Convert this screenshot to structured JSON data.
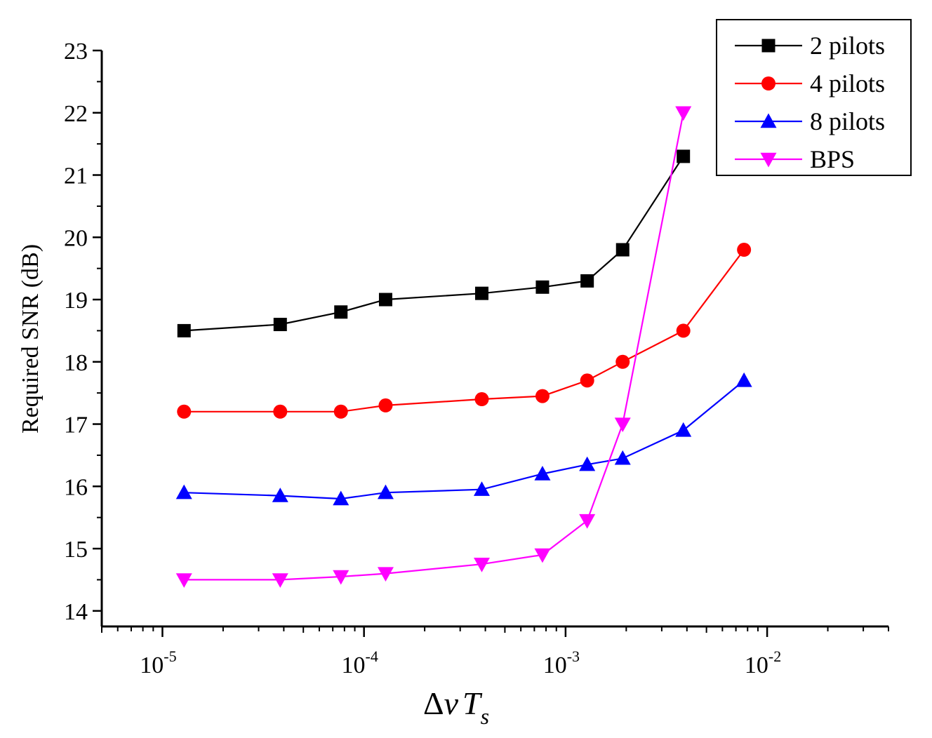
{
  "chart_data": {
    "type": "line",
    "title": "",
    "xlabel": {
      "delta": "Δ",
      "nu": "v",
      "T": "T",
      "sub": "s"
    },
    "ylabel": "Required SNR (dB)",
    "xscale": "log",
    "xlim": [
      5e-06,
      0.04
    ],
    "ylim": [
      13.75,
      23
    ],
    "yticks": [
      14,
      15,
      16,
      17,
      18,
      19,
      20,
      21,
      22,
      23
    ],
    "ytick_labels": [
      "14",
      "15",
      "16",
      "17",
      "18",
      "19",
      "20",
      "21",
      "22",
      "23"
    ],
    "xticks": [
      {
        "value": 1e-05,
        "base": "10",
        "exp": "-5"
      },
      {
        "value": 0.0001,
        "base": "10",
        "exp": "-4"
      },
      {
        "value": 0.001,
        "base": "10",
        "exp": "-3"
      },
      {
        "value": 0.01,
        "base": "10",
        "exp": "-2"
      }
    ],
    "grid": false,
    "legend_position": "top-right",
    "series": [
      {
        "name": "2 pilots",
        "color": "#000000",
        "marker": "square",
        "x": [
          1.28e-05,
          3.84e-05,
          7.68e-05,
          0.000128,
          0.000384,
          0.000768,
          0.00128,
          0.00192,
          0.00384
        ],
        "y": [
          18.5,
          18.6,
          18.8,
          19.0,
          19.1,
          19.2,
          19.3,
          19.8,
          21.3
        ]
      },
      {
        "name": "4 pilots",
        "color": "#ff0000",
        "marker": "circle",
        "x": [
          1.28e-05,
          3.84e-05,
          7.68e-05,
          0.000128,
          0.000384,
          0.000768,
          0.00128,
          0.00192,
          0.00384,
          0.00768
        ],
        "y": [
          17.2,
          17.2,
          17.2,
          17.3,
          17.4,
          17.45,
          17.7,
          18.0,
          18.5,
          19.8
        ]
      },
      {
        "name": "8 pilots",
        "color": "#0000ff",
        "marker": "triangle-up",
        "x": [
          1.28e-05,
          3.84e-05,
          7.68e-05,
          0.000128,
          0.000384,
          0.000768,
          0.00128,
          0.00192,
          0.00384,
          0.00768
        ],
        "y": [
          15.9,
          15.85,
          15.8,
          15.9,
          15.95,
          16.2,
          16.35,
          16.45,
          16.9,
          17.7
        ]
      },
      {
        "name": "BPS",
        "color": "#ff00ff",
        "marker": "triangle-down",
        "x": [
          1.28e-05,
          3.84e-05,
          7.68e-05,
          0.000128,
          0.000384,
          0.000768,
          0.00128,
          0.00192,
          0.00384
        ],
        "y": [
          14.5,
          14.5,
          14.55,
          14.6,
          14.75,
          14.9,
          15.45,
          17.0,
          22.0
        ]
      }
    ]
  }
}
